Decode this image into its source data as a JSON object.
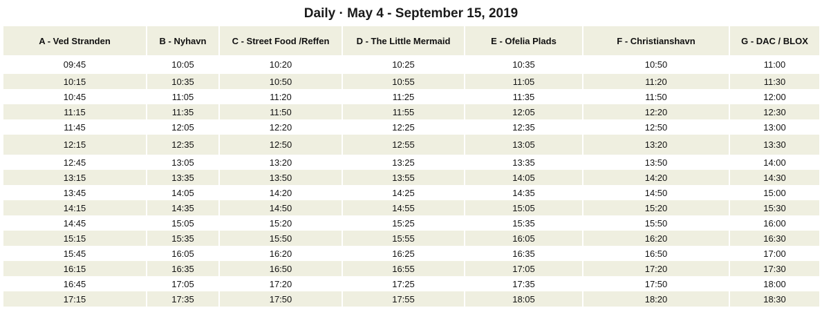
{
  "title": "Daily · May 4 - September 15, 2019",
  "columns": [
    "A - Ved Stranden",
    "B - Nyhavn",
    "C - Street Food /Reffen",
    "D - The Little Mermaid",
    "E - Ofelia Plads",
    "F - Christianshavn",
    "G - DAC / BLOX"
  ],
  "rows": [
    [
      "09:45",
      "10:05",
      "10:20",
      "10:25",
      "10:35",
      "10:50",
      "11:00"
    ],
    [
      "10:15",
      "10:35",
      "10:50",
      "10:55",
      "11:05",
      "11:20",
      "11:30"
    ],
    [
      "10:45",
      "11:05",
      "11:20",
      "11:25",
      "11:35",
      "11:50",
      "12:00"
    ],
    [
      "11:15",
      "11:35",
      "11:50",
      "11:55",
      "12:05",
      "12:20",
      "12:30"
    ],
    [
      "11:45",
      "12:05",
      "12:20",
      "12:25",
      "12:35",
      "12:50",
      "13:00"
    ],
    [
      "12:15",
      "12:35",
      "12:50",
      "12:55",
      "13:05",
      "13:20",
      "13:30"
    ],
    [
      "12:45",
      "13:05",
      "13:20",
      "13:25",
      "13:35",
      "13:50",
      "14:00"
    ],
    [
      "13:15",
      "13:35",
      "13:50",
      "13:55",
      "14:05",
      "14:20",
      "14:30"
    ],
    [
      "13:45",
      "14:05",
      "14:20",
      "14:25",
      "14:35",
      "14:50",
      "15:00"
    ],
    [
      "14:15",
      "14:35",
      "14:50",
      "14:55",
      "15:05",
      "15:20",
      "15:30"
    ],
    [
      "14:45",
      "15:05",
      "15:20",
      "15:25",
      "15:35",
      "15:50",
      "16:00"
    ],
    [
      "15:15",
      "15:35",
      "15:50",
      "15:55",
      "16:05",
      "16:20",
      "16:30"
    ],
    [
      "15:45",
      "16:05",
      "16:20",
      "16:25",
      "16:35",
      "16:50",
      "17:00"
    ],
    [
      "16:15",
      "16:35",
      "16:50",
      "16:55",
      "17:05",
      "17:20",
      "17:30"
    ],
    [
      "16:45",
      "17:05",
      "17:20",
      "17:25",
      "17:35",
      "17:50",
      "18:00"
    ],
    [
      "17:15",
      "17:35",
      "17:50",
      "17:55",
      "18:05",
      "18:20",
      "18:30"
    ]
  ],
  "colors": {
    "header_bg": "#efefe0",
    "stripe_bg": "#efefe0",
    "row_bg": "#ffffff",
    "text": "#111111"
  }
}
